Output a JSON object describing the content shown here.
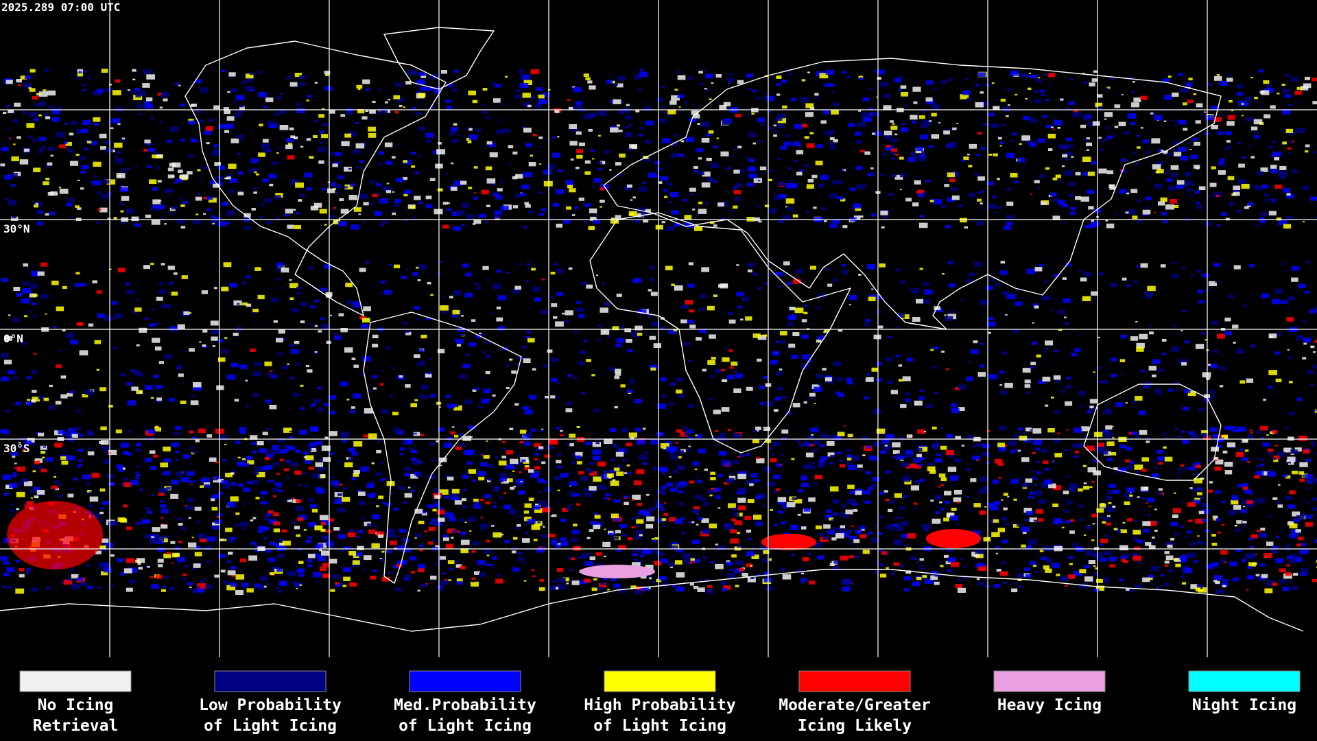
{
  "timestamp": "2025.289 07:00 UTC",
  "latitude_labels": [
    "30°N",
    "0°N",
    "30°S"
  ],
  "legend": [
    {
      "lines": [
        "No Icing",
        "Retrieval"
      ],
      "color": "#f0f0f0"
    },
    {
      "lines": [
        "Low Probability",
        "of Light Icing"
      ],
      "color": "#000080"
    },
    {
      "lines": [
        "Med.Probability",
        "of Light Icing"
      ],
      "color": "#0000ff"
    },
    {
      "lines": [
        "High Probability",
        "of Light Icing"
      ],
      "color": "#ffff00"
    },
    {
      "lines": [
        "Moderate/Greater",
        "Icing Likely"
      ],
      "color": "#ff0000"
    },
    {
      "lines": [
        "Heavy Icing"
      ],
      "color": "#e8a0e0"
    },
    {
      "lines": [
        "Night Icing"
      ],
      "color": "#00ffff"
    }
  ]
}
